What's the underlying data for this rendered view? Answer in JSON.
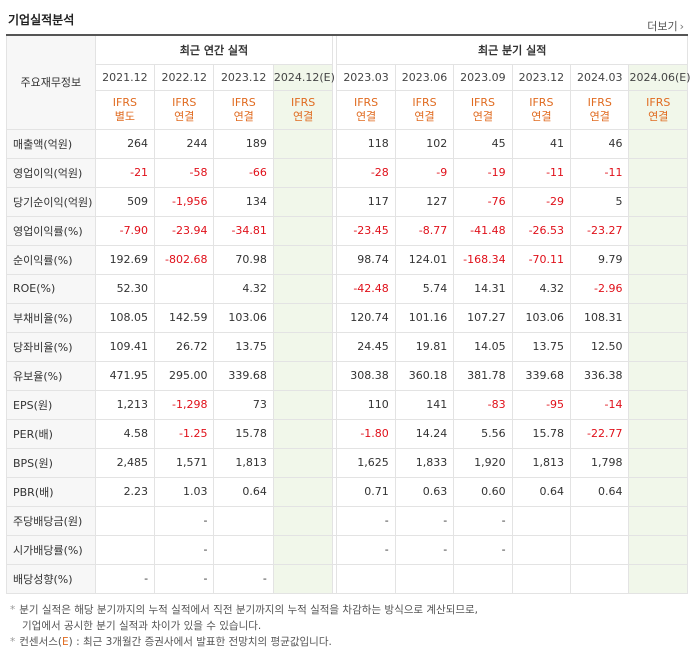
{
  "header": {
    "title": "기업실적분석",
    "more_label": "더보기",
    "more_arrow": "›"
  },
  "table": {
    "row_header_label": "주요재무정보",
    "groups": {
      "annual": "최근 연간 실적",
      "quarter": "최근 분기 실적"
    },
    "annual_years": [
      "2021.12",
      "2022.12",
      "2023.12",
      "2024.12(E)"
    ],
    "quarter_years": [
      "2023.03",
      "2023.06",
      "2023.09",
      "2023.12",
      "2024.03",
      "2024.06(E)"
    ],
    "annual_ifrs": [
      {
        "l1": "IFRS",
        "l2": "별도"
      },
      {
        "l1": "IFRS",
        "l2": "연결"
      },
      {
        "l1": "IFRS",
        "l2": "연결"
      },
      {
        "l1": "IFRS",
        "l2": "연결"
      }
    ],
    "quarter_ifrs": [
      {
        "l1": "IFRS",
        "l2": "연결"
      },
      {
        "l1": "IFRS",
        "l2": "연결"
      },
      {
        "l1": "IFRS",
        "l2": "연결"
      },
      {
        "l1": "IFRS",
        "l2": "연결"
      },
      {
        "l1": "IFRS",
        "l2": "연결"
      },
      {
        "l1": "IFRS",
        "l2": "연결"
      }
    ],
    "rows": [
      {
        "label": "매출액(억원)",
        "annual": [
          "264",
          "244",
          "189",
          ""
        ],
        "quarter": [
          "118",
          "102",
          "45",
          "41",
          "46",
          ""
        ],
        "sep": false
      },
      {
        "label": "영업이익(억원)",
        "annual": [
          "-21",
          "-58",
          "-66",
          ""
        ],
        "quarter": [
          "-28",
          "-9",
          "-19",
          "-11",
          "-11",
          ""
        ],
        "sep": false
      },
      {
        "label": "당기순이익(억원)",
        "annual": [
          "509",
          "-1,956",
          "134",
          ""
        ],
        "quarter": [
          "117",
          "127",
          "-76",
          "-29",
          "5",
          ""
        ],
        "sep": false
      },
      {
        "label": "영업이익률(%)",
        "annual": [
          "-7.90",
          "-23.94",
          "-34.81",
          ""
        ],
        "quarter": [
          "-23.45",
          "-8.77",
          "-41.48",
          "-26.53",
          "-23.27",
          ""
        ],
        "sep": true
      },
      {
        "label": "순이익률(%)",
        "annual": [
          "192.69",
          "-802.68",
          "70.98",
          ""
        ],
        "quarter": [
          "98.74",
          "124.01",
          "-168.34",
          "-70.11",
          "9.79",
          ""
        ],
        "sep": false
      },
      {
        "label": "ROE(%)",
        "annual": [
          "52.30",
          "",
          "4.32",
          ""
        ],
        "quarter": [
          "-42.48",
          "5.74",
          "14.31",
          "4.32",
          "-2.96",
          ""
        ],
        "sep": false
      },
      {
        "label": "부채비율(%)",
        "annual": [
          "108.05",
          "142.59",
          "103.06",
          ""
        ],
        "quarter": [
          "120.74",
          "101.16",
          "107.27",
          "103.06",
          "108.31",
          ""
        ],
        "sep": true
      },
      {
        "label": "당좌비율(%)",
        "annual": [
          "109.41",
          "26.72",
          "13.75",
          ""
        ],
        "quarter": [
          "24.45",
          "19.81",
          "14.05",
          "13.75",
          "12.50",
          ""
        ],
        "sep": false
      },
      {
        "label": "유보율(%)",
        "annual": [
          "471.95",
          "295.00",
          "339.68",
          ""
        ],
        "quarter": [
          "308.38",
          "360.18",
          "381.78",
          "339.68",
          "336.38",
          ""
        ],
        "sep": false
      },
      {
        "label": "EPS(원)",
        "annual": [
          "1,213",
          "-1,298",
          "73",
          ""
        ],
        "quarter": [
          "110",
          "141",
          "-83",
          "-95",
          "-14",
          ""
        ],
        "sep": true
      },
      {
        "label": "PER(배)",
        "annual": [
          "4.58",
          "-1.25",
          "15.78",
          ""
        ],
        "quarter": [
          "-1.80",
          "14.24",
          "5.56",
          "15.78",
          "-22.77",
          ""
        ],
        "sep": false
      },
      {
        "label": "BPS(원)",
        "annual": [
          "2,485",
          "1,571",
          "1,813",
          ""
        ],
        "quarter": [
          "1,625",
          "1,833",
          "1,920",
          "1,813",
          "1,798",
          ""
        ],
        "sep": false
      },
      {
        "label": "PBR(배)",
        "annual": [
          "2.23",
          "1.03",
          "0.64",
          ""
        ],
        "quarter": [
          "0.71",
          "0.63",
          "0.60",
          "0.64",
          "0.64",
          ""
        ],
        "sep": false
      },
      {
        "label": "주당배당금(원)",
        "annual": [
          "",
          "-",
          "",
          ""
        ],
        "quarter": [
          "-",
          "-",
          "-",
          "",
          "",
          ""
        ],
        "sep": true
      },
      {
        "label": "시가배당률(%)",
        "annual": [
          "",
          "-",
          "",
          ""
        ],
        "quarter": [
          "-",
          "-",
          "-",
          "",
          "",
          ""
        ],
        "sep": false
      },
      {
        "label": "배당성향(%)",
        "annual": [
          "-",
          "-",
          "-",
          ""
        ],
        "quarter": [
          "",
          "",
          "",
          "",
          "",
          ""
        ],
        "sep": false
      }
    ]
  },
  "notes": {
    "line1": "분기 실적은 해당 분기까지의 누적 실적에서 직전 분기까지의 누적 실적을 차감하는 방식으로 계산되므로,",
    "line2": "기업에서 공시한 분기 실적과 차이가 있을 수 있습니다.",
    "line3_pre": "컨센서스(",
    "line3_e": "E",
    "line3_post": ") : 최근 3개월간 증권사에서 발표한 전망치의 평균값입니다.",
    "bullet": "*"
  }
}
